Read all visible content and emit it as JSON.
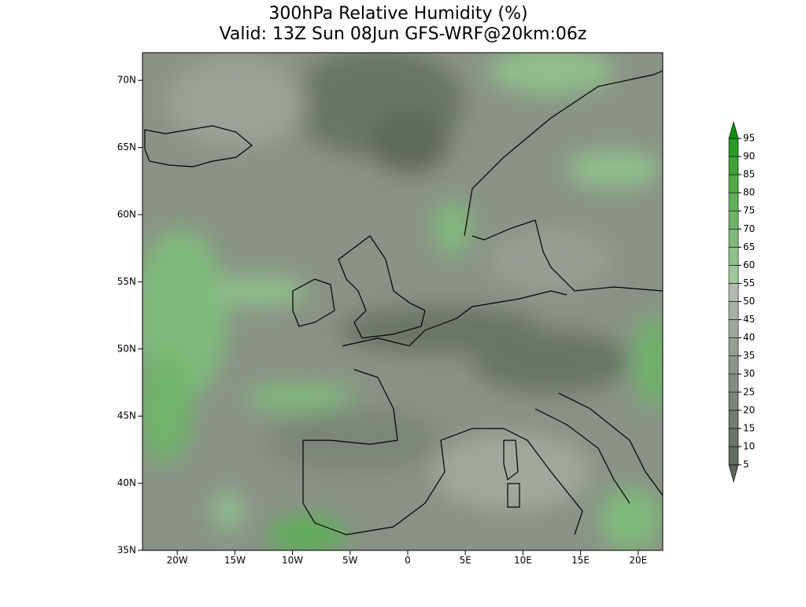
{
  "title": [
    "300hPa Relative Humidity (%)",
    "Valid: 13Z Sun 08Jun GFS-WRF@20km:06z"
  ],
  "map": {
    "lon_ticks": [
      {
        "value": -20,
        "label": "20W"
      },
      {
        "value": -15,
        "label": "15W"
      },
      {
        "value": -10,
        "label": "10W"
      },
      {
        "value": -5,
        "label": "5W"
      },
      0,
      {
        "value": 5,
        "label": "5E"
      },
      {
        "value": 10,
        "label": "10E"
      },
      {
        "value": 15,
        "label": "15E"
      },
      {
        "value": 20,
        "label": "20E"
      }
    ],
    "lat_ticks": [
      {
        "value": 35,
        "label": "35N"
      },
      {
        "value": 40,
        "label": "40N"
      },
      {
        "value": 45,
        "label": "45N"
      },
      {
        "value": 50,
        "label": "50N"
      },
      {
        "value": 55,
        "label": "55N"
      },
      {
        "value": 60,
        "label": "60N"
      },
      {
        "value": 65,
        "label": "65N"
      },
      {
        "value": 70,
        "label": "70N"
      }
    ],
    "colorbar": {
      "levels": [
        5,
        10,
        15,
        20,
        25,
        30,
        35,
        40,
        45,
        50,
        55,
        60,
        65,
        70,
        75,
        80,
        85,
        90,
        95
      ],
      "colors": [
        "#5a6457",
        "#626c60",
        "#6b7468",
        "#737c70",
        "#7c8579",
        "#858d82",
        "#8e968b",
        "#979f94",
        "#a0a89d",
        "#a9b1a6",
        "#b4bcb1",
        "#9fc79b",
        "#8fc08a",
        "#7fba7a",
        "#6fb46a",
        "#5fae5a",
        "#4fa84a",
        "#3fa23a",
        "#2a9a26",
        "#128f10"
      ]
    }
  }
}
